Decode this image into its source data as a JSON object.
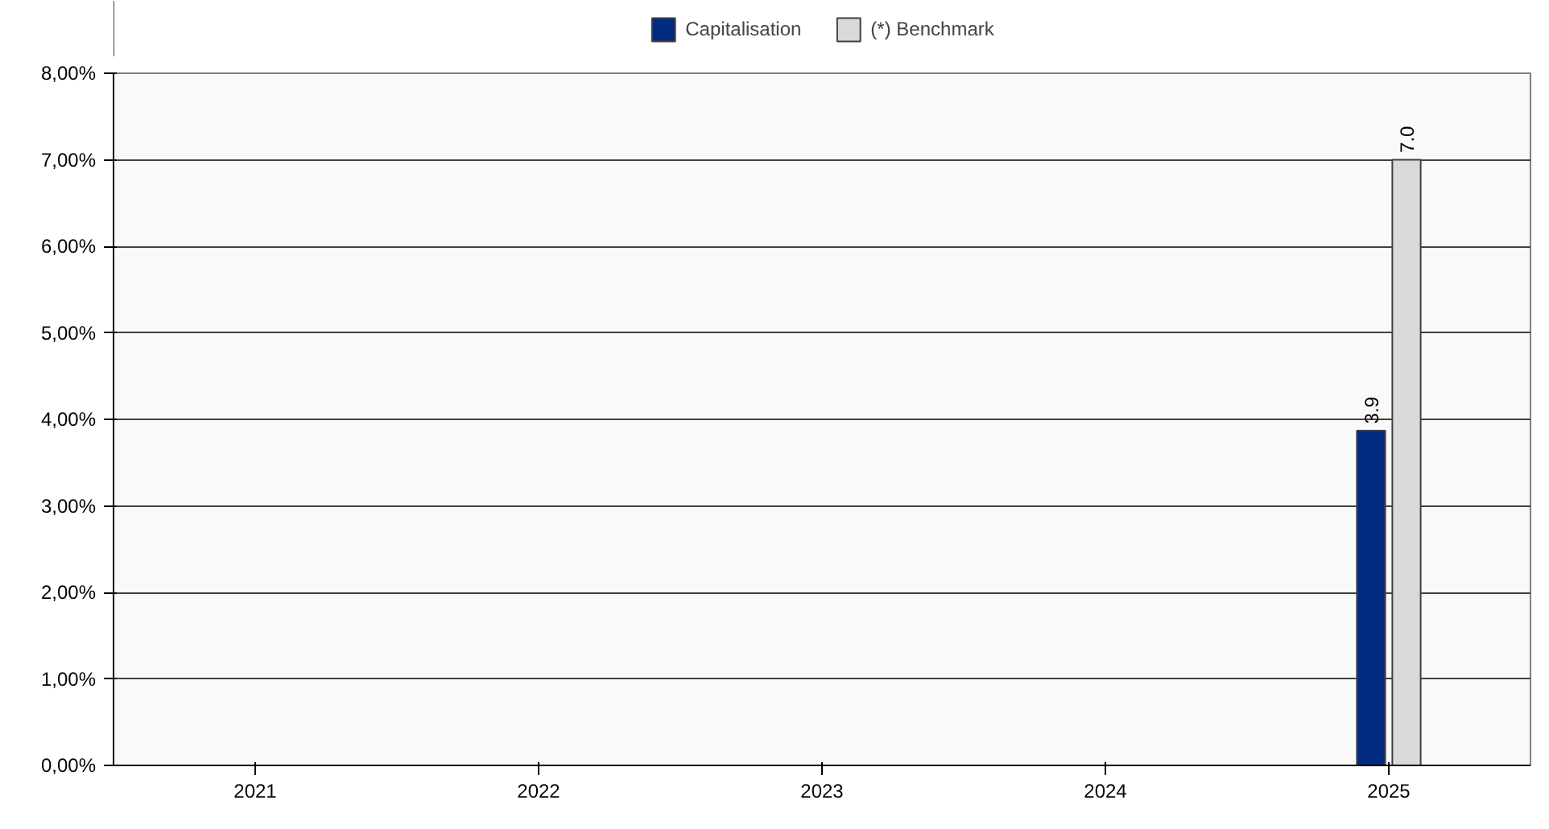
{
  "chart_data": {
    "type": "bar",
    "categories": [
      "2021",
      "2022",
      "2023",
      "2024",
      "2025"
    ],
    "series": [
      {
        "name": "Capitalisation",
        "color": "#002b80",
        "values": [
          null,
          null,
          null,
          null,
          3.87
        ],
        "value_labels": [
          null,
          null,
          null,
          null,
          "3.9"
        ]
      },
      {
        "name": "(*) Benchmark",
        "color": "#d9d9d9",
        "values": [
          null,
          null,
          null,
          null,
          7.0
        ],
        "value_labels": [
          null,
          null,
          null,
          null,
          "7.0"
        ]
      }
    ],
    "ylim": [
      0,
      8
    ],
    "yticks": [
      {
        "value": 0,
        "label": "0,00%"
      },
      {
        "value": 1,
        "label": "1,00%"
      },
      {
        "value": 2,
        "label": "2,00%"
      },
      {
        "value": 3,
        "label": "3,00%"
      },
      {
        "value": 4,
        "label": "4,00%"
      },
      {
        "value": 5,
        "label": "5,00%"
      },
      {
        "value": 6,
        "label": "6,00%"
      },
      {
        "value": 7,
        "label": "7,00%"
      },
      {
        "value": 8,
        "label": "8,00%"
      }
    ],
    "grid": "y",
    "legend": "top"
  }
}
